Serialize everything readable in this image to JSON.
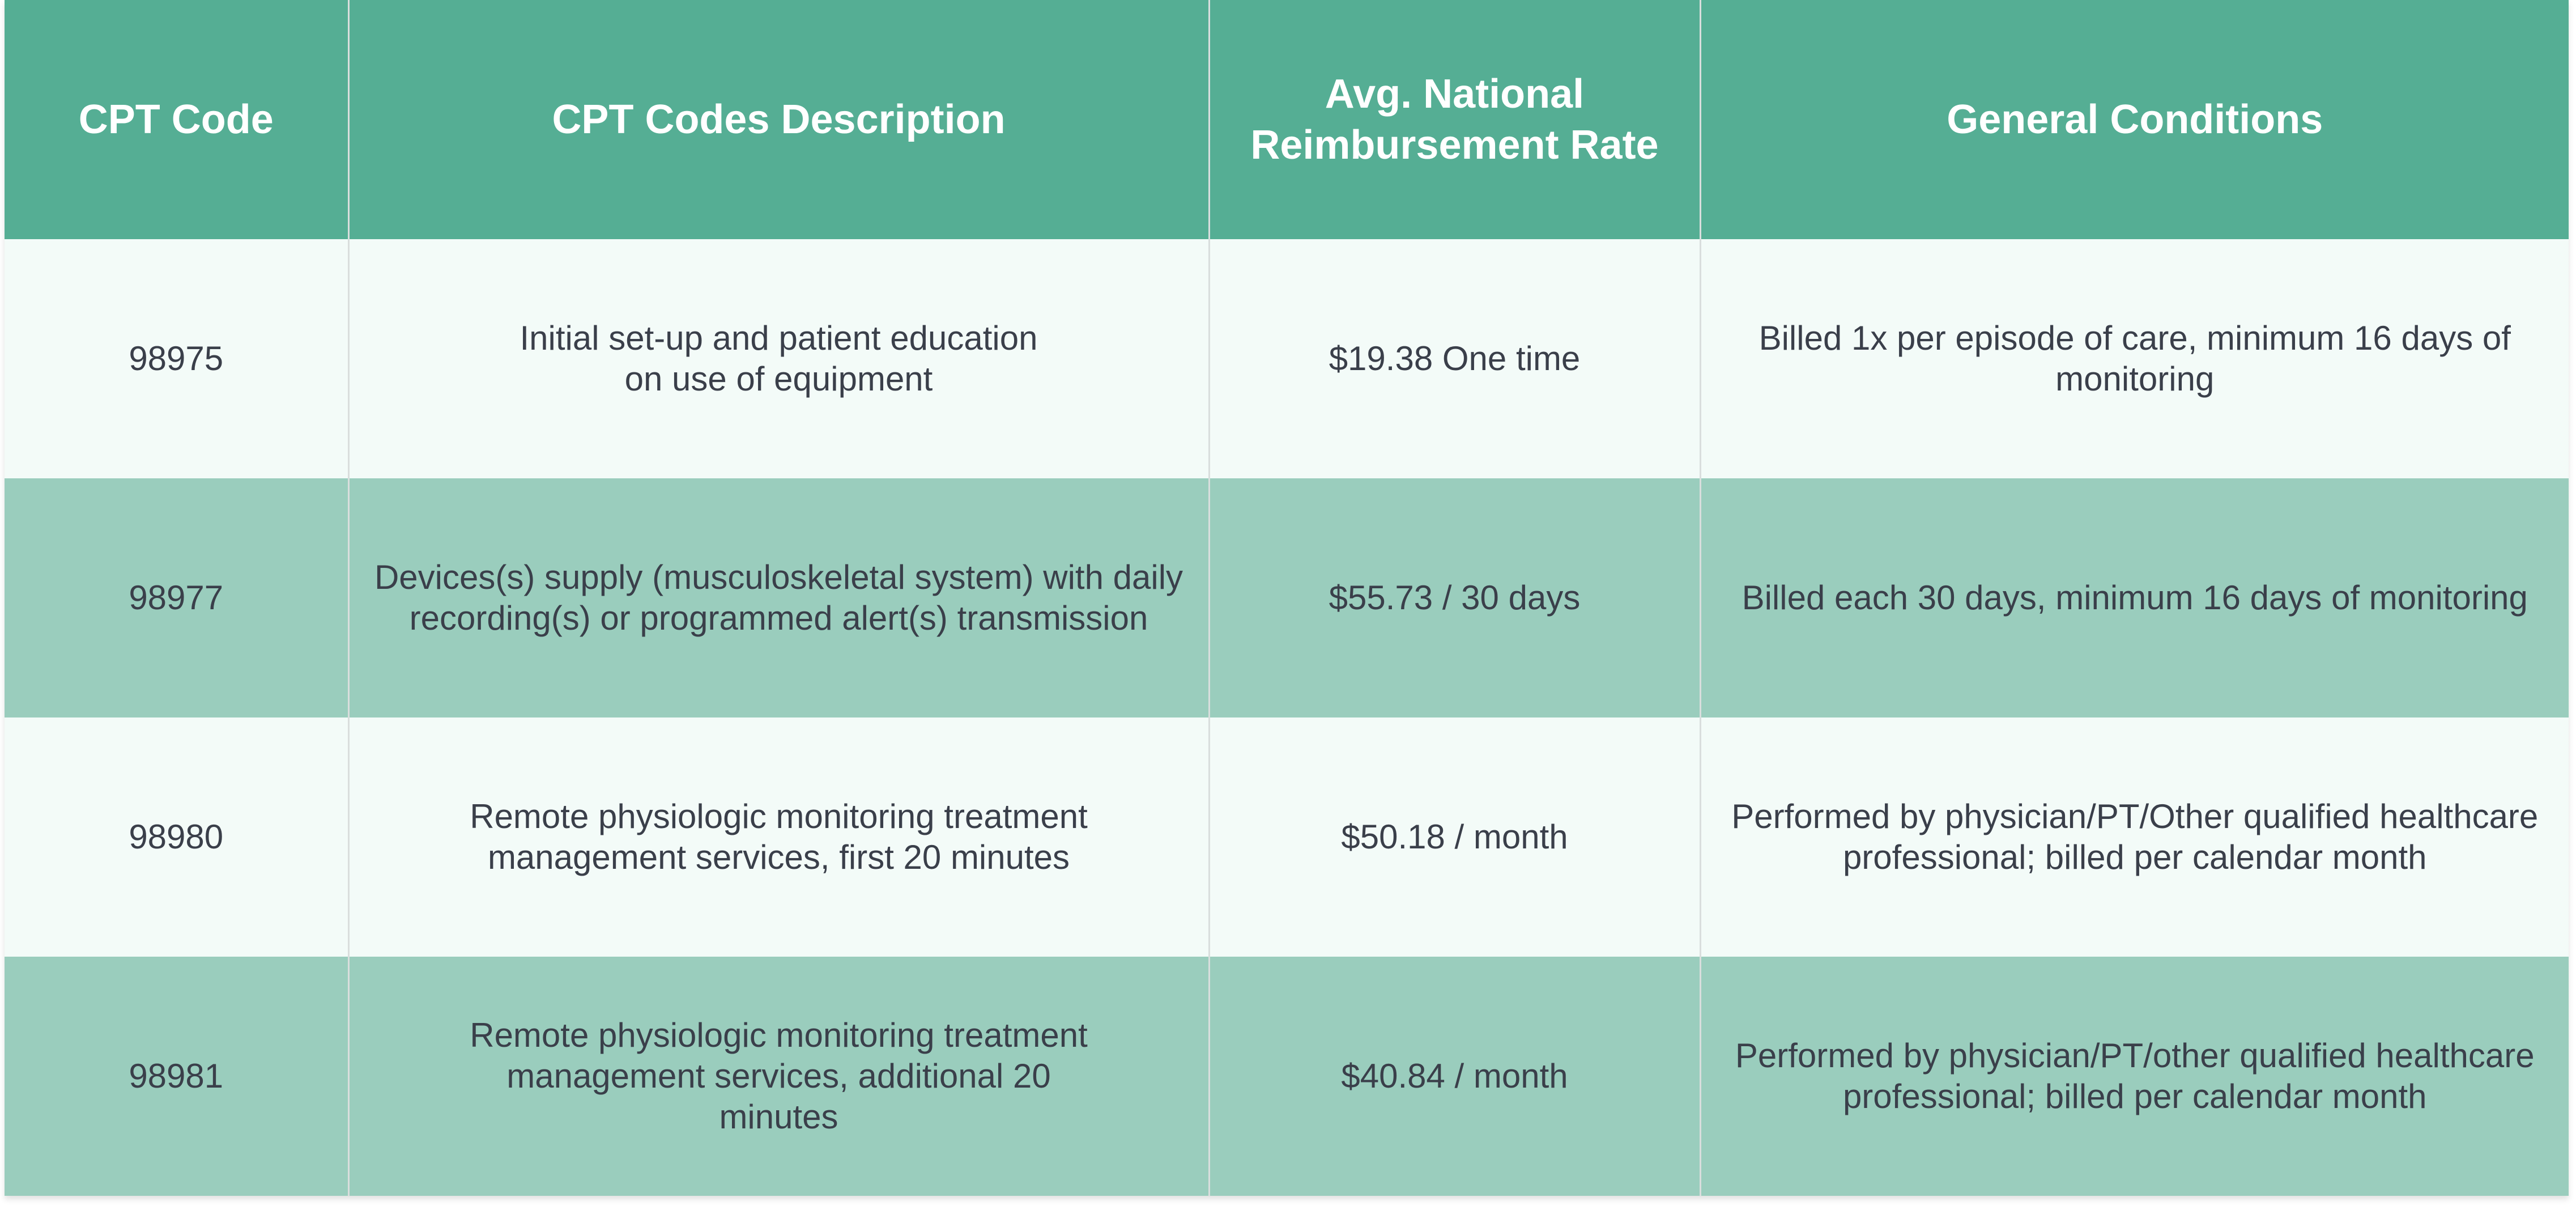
{
  "table": {
    "headers": [
      "CPT Code",
      "CPT Codes Description",
      "Avg. National Reimbursement Rate",
      "General Conditions"
    ],
    "rows": [
      {
        "code": "98975",
        "description": "Initial set-up and patient education on use of equipment",
        "rate": "$19.38 One time",
        "conditions": "Billed 1x per episode of care, minimum 16 days of monitoring"
      },
      {
        "code": "98977",
        "description": "Devices(s) supply (musculoskeletal system) with daily recording(s) or programmed alert(s) transmission",
        "rate": "$55.73 / 30 days",
        "conditions": "Billed each 30 days, minimum 16 days of monitoring"
      },
      {
        "code": "98980",
        "description": "Remote physiologic monitoring treatment management services, first 20 minutes",
        "rate": "$50.18 / month",
        "conditions": "Performed by physician/PT/Other qualified healthcare professional; billed per calendar month"
      },
      {
        "code": "98981",
        "description": "Remote physiologic monitoring treatment management services, additional 20 minutes",
        "rate": "$40.84 / month",
        "conditions": "Performed by physician/PT/other qualified healthcare professional; billed per calendar month"
      }
    ]
  },
  "colors": {
    "header_bg": "#55ae94",
    "row_light": "#f3fbf8",
    "row_dark": "#9acdbd"
  }
}
